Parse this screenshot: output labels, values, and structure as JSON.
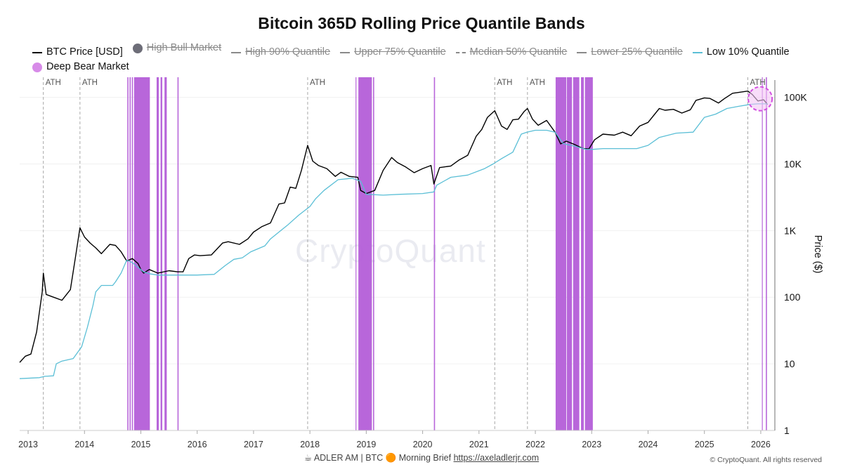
{
  "chart_data": {
    "type": "line",
    "title": "Bitcoin 365D Rolling Price Quantile Bands",
    "ylabel": "Price ($)",
    "yscale": "log",
    "ylim": [
      1,
      200000
    ],
    "xlim": [
      2012.85,
      2026.25
    ],
    "x_ticks": [
      "2013",
      "2014",
      "2015",
      "2016",
      "2017",
      "2018",
      "2019",
      "2020",
      "2021",
      "2022",
      "2023",
      "2024",
      "2025",
      "2026"
    ],
    "y_ticks": [
      {
        "value": 1,
        "label": "1"
      },
      {
        "value": 10,
        "label": "10"
      },
      {
        "value": 100,
        "label": "100"
      },
      {
        "value": 1000,
        "label": "1K"
      },
      {
        "value": 10000,
        "label": "10K"
      },
      {
        "value": 100000,
        "label": "100K"
      }
    ],
    "ath_lines": [
      {
        "x": 2013.27,
        "label": "ATH"
      },
      {
        "x": 2013.92,
        "label": "ATH"
      },
      {
        "x": 2017.96,
        "label": "ATH"
      },
      {
        "x": 2021.28,
        "label": "ATH"
      },
      {
        "x": 2021.86,
        "label": "ATH"
      },
      {
        "x": 2025.77,
        "label": "ATH"
      }
    ],
    "series": [
      {
        "name": "BTC Price [USD]",
        "color": "#000000",
        "points": [
          [
            2012.85,
            10.5
          ],
          [
            2012.95,
            13
          ],
          [
            2013.05,
            14
          ],
          [
            2013.15,
            30
          ],
          [
            2013.25,
            120
          ],
          [
            2013.27,
            230
          ],
          [
            2013.32,
            110
          ],
          [
            2013.45,
            100
          ],
          [
            2013.6,
            90
          ],
          [
            2013.75,
            130
          ],
          [
            2013.85,
            450
          ],
          [
            2013.92,
            1100
          ],
          [
            2014.0,
            800
          ],
          [
            2014.1,
            650
          ],
          [
            2014.2,
            550
          ],
          [
            2014.3,
            450
          ],
          [
            2014.45,
            620
          ],
          [
            2014.55,
            600
          ],
          [
            2014.65,
            480
          ],
          [
            2014.75,
            350
          ],
          [
            2014.85,
            380
          ],
          [
            2014.95,
            320
          ],
          [
            2015.0,
            260
          ],
          [
            2015.05,
            230
          ],
          [
            2015.15,
            260
          ],
          [
            2015.3,
            230
          ],
          [
            2015.5,
            250
          ],
          [
            2015.65,
            240
          ],
          [
            2015.75,
            240
          ],
          [
            2015.85,
            380
          ],
          [
            2015.95,
            430
          ],
          [
            2016.05,
            420
          ],
          [
            2016.25,
            430
          ],
          [
            2016.45,
            650
          ],
          [
            2016.55,
            680
          ],
          [
            2016.75,
            620
          ],
          [
            2016.9,
            750
          ],
          [
            2017.0,
            950
          ],
          [
            2017.15,
            1150
          ],
          [
            2017.3,
            1300
          ],
          [
            2017.45,
            2500
          ],
          [
            2017.55,
            2600
          ],
          [
            2017.65,
            4500
          ],
          [
            2017.75,
            4300
          ],
          [
            2017.85,
            8000
          ],
          [
            2017.96,
            19000
          ],
          [
            2018.05,
            11000
          ],
          [
            2018.15,
            9500
          ],
          [
            2018.3,
            8500
          ],
          [
            2018.45,
            6500
          ],
          [
            2018.55,
            7500
          ],
          [
            2018.7,
            6500
          ],
          [
            2018.85,
            6300
          ],
          [
            2018.9,
            4000
          ],
          [
            2019.0,
            3600
          ],
          [
            2019.15,
            4000
          ],
          [
            2019.3,
            8000
          ],
          [
            2019.45,
            12500
          ],
          [
            2019.55,
            10500
          ],
          [
            2019.7,
            9000
          ],
          [
            2019.85,
            7400
          ],
          [
            2020.0,
            8500
          ],
          [
            2020.15,
            9500
          ],
          [
            2020.2,
            5000
          ],
          [
            2020.3,
            8800
          ],
          [
            2020.5,
            9300
          ],
          [
            2020.65,
            11500
          ],
          [
            2020.8,
            13500
          ],
          [
            2020.95,
            26000
          ],
          [
            2021.05,
            33000
          ],
          [
            2021.15,
            50000
          ],
          [
            2021.28,
            63000
          ],
          [
            2021.4,
            37000
          ],
          [
            2021.5,
            33000
          ],
          [
            2021.6,
            46000
          ],
          [
            2021.7,
            47000
          ],
          [
            2021.8,
            61000
          ],
          [
            2021.86,
            68000
          ],
          [
            2021.95,
            47000
          ],
          [
            2022.05,
            38000
          ],
          [
            2022.2,
            45000
          ],
          [
            2022.35,
            30000
          ],
          [
            2022.45,
            20000
          ],
          [
            2022.55,
            22000
          ],
          [
            2022.7,
            19500
          ],
          [
            2022.85,
            17000
          ],
          [
            2022.95,
            16800
          ],
          [
            2023.05,
            23000
          ],
          [
            2023.2,
            28000
          ],
          [
            2023.4,
            27000
          ],
          [
            2023.55,
            30000
          ],
          [
            2023.7,
            26500
          ],
          [
            2023.85,
            37000
          ],
          [
            2024.0,
            42000
          ],
          [
            2024.2,
            68000
          ],
          [
            2024.3,
            64000
          ],
          [
            2024.45,
            66000
          ],
          [
            2024.6,
            58000
          ],
          [
            2024.75,
            65000
          ],
          [
            2024.85,
            90000
          ],
          [
            2025.0,
            98000
          ],
          [
            2025.1,
            96000
          ],
          [
            2025.25,
            82000
          ],
          [
            2025.35,
            95000
          ],
          [
            2025.5,
            115000
          ],
          [
            2025.6,
            118000
          ],
          [
            2025.77,
            124000
          ],
          [
            2025.85,
            110000
          ],
          [
            2025.95,
            88000
          ],
          [
            2026.05,
            92000
          ],
          [
            2026.12,
            78000
          ]
        ]
      },
      {
        "name": "Low 10% Quantile",
        "color": "#5bbfd6",
        "points": [
          [
            2012.85,
            6
          ],
          [
            2013.2,
            6.2
          ],
          [
            2013.3,
            6.5
          ],
          [
            2013.45,
            6.6
          ],
          [
            2013.5,
            10
          ],
          [
            2013.6,
            11
          ],
          [
            2013.8,
            12
          ],
          [
            2013.95,
            18
          ],
          [
            2014.05,
            35
          ],
          [
            2014.15,
            75
          ],
          [
            2014.2,
            120
          ],
          [
            2014.3,
            150
          ],
          [
            2014.5,
            150
          ],
          [
            2014.55,
            170
          ],
          [
            2014.65,
            230
          ],
          [
            2014.75,
            360
          ],
          [
            2014.85,
            330
          ],
          [
            2014.95,
            280
          ],
          [
            2015.05,
            240
          ],
          [
            2015.15,
            225
          ],
          [
            2015.3,
            215
          ],
          [
            2015.6,
            215
          ],
          [
            2016.0,
            215
          ],
          [
            2016.3,
            220
          ],
          [
            2016.5,
            300
          ],
          [
            2016.65,
            370
          ],
          [
            2016.8,
            390
          ],
          [
            2016.95,
            480
          ],
          [
            2017.2,
            590
          ],
          [
            2017.3,
            750
          ],
          [
            2017.45,
            950
          ],
          [
            2017.6,
            1200
          ],
          [
            2017.8,
            1700
          ],
          [
            2018.0,
            2300
          ],
          [
            2018.1,
            3000
          ],
          [
            2018.25,
            4000
          ],
          [
            2018.5,
            5800
          ],
          [
            2018.75,
            6100
          ],
          [
            2018.9,
            5500
          ],
          [
            2019.0,
            3500
          ],
          [
            2019.3,
            3400
          ],
          [
            2019.6,
            3500
          ],
          [
            2020.0,
            3600
          ],
          [
            2020.2,
            3800
          ],
          [
            2020.25,
            4800
          ],
          [
            2020.5,
            6300
          ],
          [
            2020.8,
            6800
          ],
          [
            2021.1,
            8500
          ],
          [
            2021.25,
            10000
          ],
          [
            2021.4,
            12000
          ],
          [
            2021.6,
            15000
          ],
          [
            2021.75,
            28000
          ],
          [
            2021.85,
            30000
          ],
          [
            2022.0,
            32000
          ],
          [
            2022.2,
            32000
          ],
          [
            2022.35,
            30000
          ],
          [
            2022.5,
            20000
          ],
          [
            2022.7,
            18500
          ],
          [
            2022.9,
            16500
          ],
          [
            2023.0,
            16500
          ],
          [
            2023.2,
            17000
          ],
          [
            2023.5,
            17000
          ],
          [
            2023.8,
            17000
          ],
          [
            2024.0,
            19000
          ],
          [
            2024.2,
            25000
          ],
          [
            2024.5,
            29000
          ],
          [
            2024.8,
            30000
          ],
          [
            2025.0,
            50000
          ],
          [
            2025.2,
            56000
          ],
          [
            2025.4,
            68000
          ],
          [
            2025.6,
            73000
          ],
          [
            2025.8,
            78000
          ],
          [
            2025.95,
            80000
          ],
          [
            2026.12,
            80000
          ]
        ]
      }
    ],
    "deep_bear_color": "#b45ed8",
    "deep_bear_spans": [
      [
        2014.76,
        2014.78
      ],
      [
        2014.8,
        2014.82
      ],
      [
        2014.84,
        2014.86
      ],
      [
        2014.88,
        2015.16
      ],
      [
        2015.28,
        2015.32
      ],
      [
        2015.35,
        2015.38
      ],
      [
        2015.42,
        2015.46
      ],
      [
        2015.65,
        2015.67
      ],
      [
        2018.81,
        2018.82
      ],
      [
        2018.86,
        2019.1
      ],
      [
        2019.12,
        2019.14
      ],
      [
        2020.2,
        2020.22
      ],
      [
        2022.36,
        2022.55
      ],
      [
        2022.56,
        2022.65
      ],
      [
        2022.67,
        2022.78
      ],
      [
        2022.81,
        2022.86
      ],
      [
        2022.88,
        2023.02
      ],
      [
        2026.02,
        2026.03
      ],
      [
        2026.09,
        2026.11
      ]
    ],
    "highlight": {
      "x": 2025.99,
      "y": 95000
    }
  },
  "legend": [
    {
      "label": "BTC Price [USD]",
      "style": "line",
      "color": "#000000",
      "off": false
    },
    {
      "label": "High Bull Market",
      "style": "dot",
      "color": "#6d6d78",
      "off": true
    },
    {
      "label": "High 90% Quantile",
      "style": "line",
      "color": "#8a8a8a",
      "off": true
    },
    {
      "label": "Upper 75% Quantile",
      "style": "line",
      "color": "#8a8a8a",
      "off": true
    },
    {
      "label": "Median 50% Quantile",
      "style": "dash",
      "color": "#8a8a8a",
      "off": true
    },
    {
      "label": "Lower 25% Quantile",
      "style": "line",
      "color": "#8a8a8a",
      "off": true
    },
    {
      "label": "Low 10% Quantile",
      "style": "line",
      "color": "#5bbfd6",
      "off": false
    },
    {
      "label": "Deep Bear Market",
      "style": "dot",
      "color": "#d78be8",
      "off": false
    }
  ],
  "watermark": "CryptoQuant",
  "footer": {
    "prefix": "☕ ADLER AM | BTC 🟠 Morning Brief",
    "link": "https://axeladlerjr.com"
  },
  "copyright": "© CryptoQuant. All rights reserved"
}
